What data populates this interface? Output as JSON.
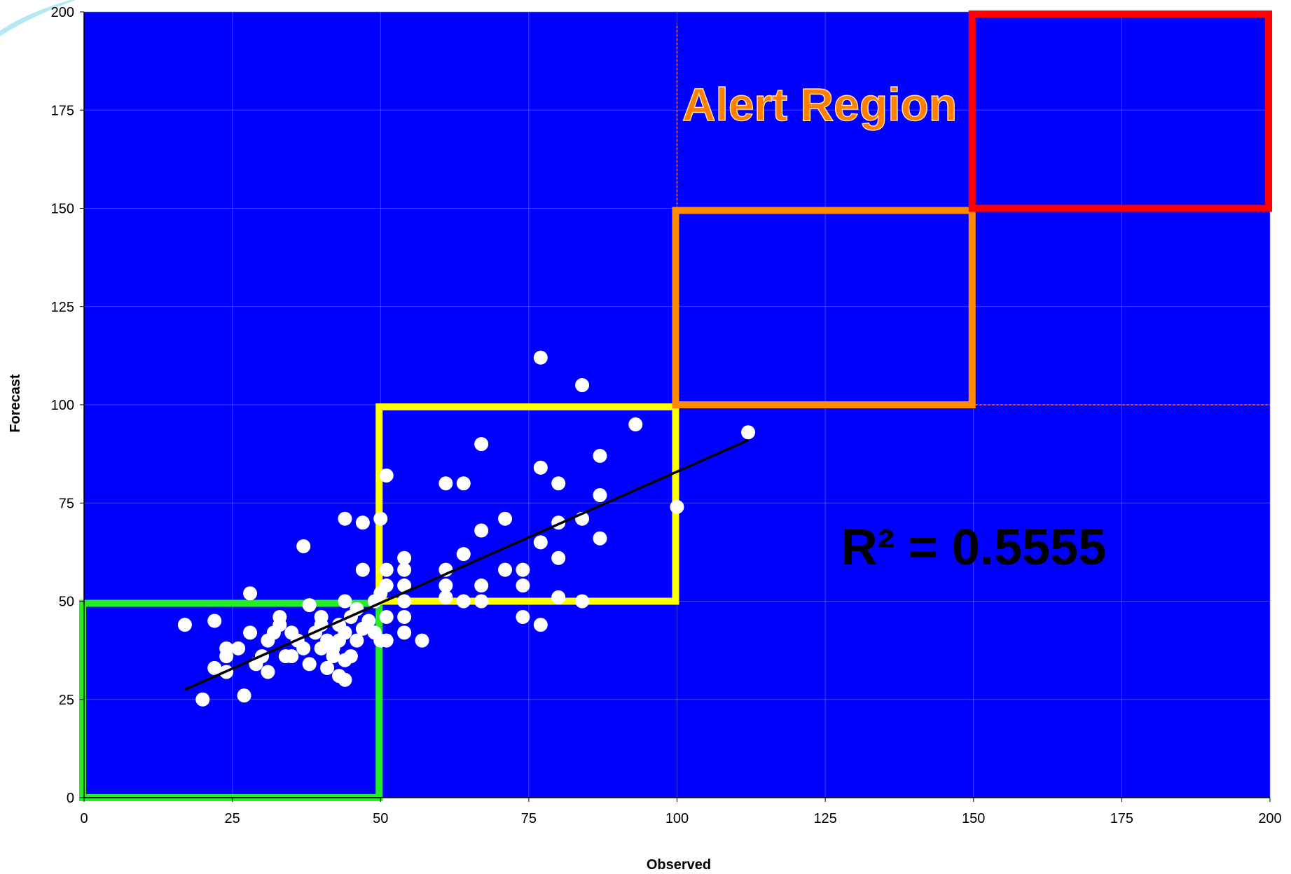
{
  "chart_data": {
    "type": "scatter",
    "title": "",
    "xlabel": "Observed",
    "ylabel": "Forecast",
    "xlim": [
      0,
      200
    ],
    "ylim": [
      0,
      200
    ],
    "xticks": [
      0,
      25,
      50,
      75,
      100,
      125,
      150,
      175,
      200
    ],
    "yticks": [
      0,
      25,
      50,
      75,
      100,
      125,
      150,
      175,
      200
    ],
    "grid": true,
    "plot_background": "#0000ff",
    "point_color": "#ffffff",
    "points": [
      [
        17,
        44
      ],
      [
        20,
        25
      ],
      [
        22,
        45
      ],
      [
        22,
        33
      ],
      [
        24,
        36
      ],
      [
        24,
        38
      ],
      [
        24,
        32
      ],
      [
        26,
        38
      ],
      [
        27,
        26
      ],
      [
        28,
        52
      ],
      [
        28,
        42
      ],
      [
        29,
        34
      ],
      [
        30,
        36
      ],
      [
        31,
        40
      ],
      [
        31,
        32
      ],
      [
        32,
        42
      ],
      [
        33,
        44
      ],
      [
        33,
        46
      ],
      [
        34,
        36
      ],
      [
        35,
        42
      ],
      [
        35,
        36
      ],
      [
        36,
        40
      ],
      [
        37,
        64
      ],
      [
        37,
        38
      ],
      [
        38,
        34
      ],
      [
        38,
        49
      ],
      [
        39,
        42
      ],
      [
        40,
        44
      ],
      [
        40,
        46
      ],
      [
        40,
        38
      ],
      [
        41,
        40
      ],
      [
        41,
        33
      ],
      [
        42,
        36
      ],
      [
        42,
        38
      ],
      [
        43,
        40
      ],
      [
        43,
        31
      ],
      [
        43,
        44
      ],
      [
        44,
        50
      ],
      [
        44,
        71
      ],
      [
        44,
        42
      ],
      [
        44,
        35
      ],
      [
        44,
        30
      ],
      [
        45,
        36
      ],
      [
        45,
        46
      ],
      [
        46,
        40
      ],
      [
        46,
        48
      ],
      [
        47,
        70
      ],
      [
        47,
        58
      ],
      [
        47,
        43
      ],
      [
        48,
        45
      ],
      [
        49,
        50
      ],
      [
        49,
        42
      ],
      [
        50,
        71
      ],
      [
        50,
        52
      ],
      [
        50,
        40
      ],
      [
        51,
        82
      ],
      [
        51,
        58
      ],
      [
        51,
        54
      ],
      [
        51,
        46
      ],
      [
        51,
        40
      ],
      [
        54,
        61
      ],
      [
        54,
        58
      ],
      [
        54,
        54
      ],
      [
        54,
        50
      ],
      [
        54,
        46
      ],
      [
        54,
        42
      ],
      [
        57,
        40
      ],
      [
        61,
        80
      ],
      [
        61,
        58
      ],
      [
        61,
        54
      ],
      [
        61,
        51
      ],
      [
        64,
        80
      ],
      [
        64,
        62
      ],
      [
        64,
        50
      ],
      [
        67,
        90
      ],
      [
        67,
        68
      ],
      [
        67,
        54
      ],
      [
        67,
        50
      ],
      [
        71,
        71
      ],
      [
        71,
        58
      ],
      [
        74,
        58
      ],
      [
        74,
        54
      ],
      [
        74,
        46
      ],
      [
        77,
        112
      ],
      [
        77,
        84
      ],
      [
        77,
        65
      ],
      [
        77,
        44
      ],
      [
        80,
        80
      ],
      [
        80,
        70
      ],
      [
        80,
        61
      ],
      [
        80,
        51
      ],
      [
        84,
        105
      ],
      [
        84,
        71
      ],
      [
        84,
        50
      ],
      [
        87,
        87
      ],
      [
        87,
        77
      ],
      [
        87,
        66
      ],
      [
        93,
        95
      ],
      [
        100,
        74
      ],
      [
        112,
        93
      ]
    ],
    "trendline": {
      "type": "linear",
      "x": [
        17,
        112
      ],
      "y": [
        27.5,
        91
      ]
    },
    "regions": [
      {
        "x": [
          0,
          50
        ],
        "y": [
          0,
          50
        ],
        "color": "#22ee22"
      },
      {
        "x": [
          50,
          100
        ],
        "y": [
          50,
          100
        ],
        "color": "#ffff00"
      },
      {
        "x": [
          100,
          150
        ],
        "y": [
          100,
          150
        ],
        "color": "#ff8c00"
      },
      {
        "x": [
          150,
          200
        ],
        "y": [
          150,
          200
        ],
        "color": "#ff0000"
      }
    ],
    "alert_lines": {
      "x": 100,
      "y": 100,
      "color": "#ff4500"
    },
    "annotations": {
      "alert_region": "Alert Region",
      "r_squared": "R² = 0.5555"
    }
  }
}
